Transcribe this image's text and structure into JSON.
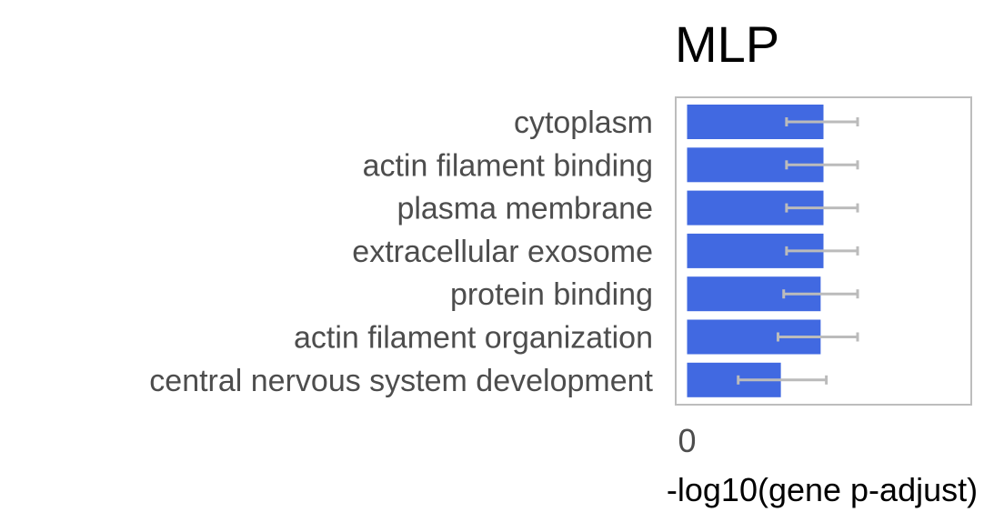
{
  "chart_data": {
    "type": "bar",
    "orientation": "horizontal",
    "title": "MLP",
    "xlabel": "-log10(gene p-adjust)",
    "ylabel": "",
    "categories": [
      "cytoplasm",
      "actin filament binding",
      "plasma membrane",
      "extracellular exosome",
      "protein binding",
      "actin filament organization",
      "central nervous system development"
    ],
    "values": [
      0.48,
      0.48,
      0.48,
      0.48,
      0.47,
      0.47,
      0.33
    ],
    "error_low": [
      0.35,
      0.35,
      0.35,
      0.35,
      0.34,
      0.32,
      0.18
    ],
    "error_high": [
      0.6,
      0.6,
      0.6,
      0.6,
      0.6,
      0.6,
      0.49
    ],
    "x_ticks": [
      0
    ],
    "x_tick_labels": [
      "0"
    ],
    "xlim": [
      -0.04,
      1.0
    ],
    "grid": false,
    "bar_color": "#4169e1",
    "error_color": "#bbbbbb",
    "frame_color": "#bdbdbd",
    "label_color": "#4d4d4d"
  }
}
